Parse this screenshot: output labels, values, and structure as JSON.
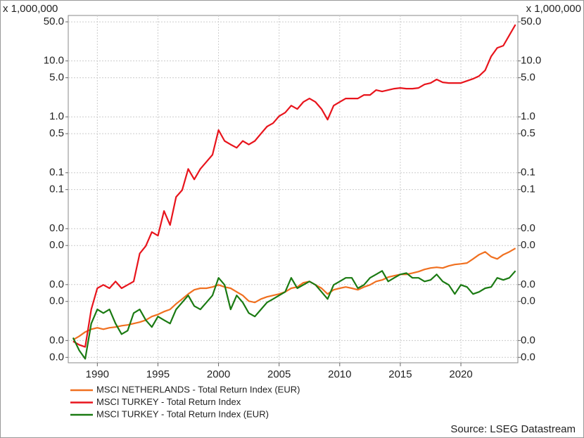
{
  "chart_data": {
    "type": "line",
    "y_unit_label": "x 1,000,000",
    "source": "Source: LSEG Datastream",
    "log_scale": true,
    "grid": true,
    "legend_position": "bottom-left",
    "xlim": [
      1987.6,
      2024.7
    ],
    "xticks": [
      1990,
      1995,
      2000,
      2005,
      2010,
      2015,
      2020
    ],
    "ylim": [
      4e-05,
      65
    ],
    "yticks": [
      {
        "value": 50,
        "label": "50.0"
      },
      {
        "value": 10,
        "label": "10.0"
      },
      {
        "value": 5,
        "label": "5.0"
      },
      {
        "value": 1,
        "label": "1.0"
      },
      {
        "value": 0.5,
        "label": "0.5"
      },
      {
        "value": 0.1,
        "label": "0.1"
      },
      {
        "value": 0.05,
        "label": "0.1"
      },
      {
        "value": 0.01,
        "label": "0.0"
      },
      {
        "value": 0.005,
        "label": "0.0"
      },
      {
        "value": 0.001,
        "label": "0.0"
      },
      {
        "value": 0.0005,
        "label": "0.0"
      },
      {
        "value": 0.0001,
        "label": "0.0"
      },
      {
        "value": 5e-05,
        "label": "0.0"
      }
    ],
    "x": [
      1988,
      1988.5,
      1989,
      1989.5,
      1990,
      1990.5,
      1991,
      1991.5,
      1992,
      1992.5,
      1993,
      1993.5,
      1994,
      1994.5,
      1995,
      1995.5,
      1996,
      1996.5,
      1997,
      1997.5,
      1998,
      1998.5,
      1999,
      1999.5,
      2000,
      2000.5,
      2001,
      2001.5,
      2002,
      2002.5,
      2003,
      2003.5,
      2004,
      2004.5,
      2005,
      2005.5,
      2006,
      2006.5,
      2007,
      2007.5,
      2008,
      2008.5,
      2009,
      2009.5,
      2010,
      2010.5,
      2011,
      2011.5,
      2012,
      2012.5,
      2013,
      2013.5,
      2014,
      2014.5,
      2015,
      2015.5,
      2016,
      2016.5,
      2017,
      2017.5,
      2018,
      2018.5,
      2019,
      2019.5,
      2020,
      2020.5,
      2021,
      2021.5,
      2022,
      2022.5,
      2023,
      2023.5,
      2024,
      2024.5
    ],
    "series": [
      {
        "name": "MSCI NETHERLANDS - Total Return Index (EUR)",
        "color": "#f07020",
        "values": [
          0.000103,
          0.000119,
          0.000142,
          0.000159,
          0.000169,
          0.000159,
          0.000169,
          0.000174,
          0.000184,
          0.00019,
          0.000201,
          0.000213,
          0.000232,
          0.000269,
          0.000292,
          0.000329,
          0.00036,
          0.000452,
          0.000553,
          0.000678,
          0.000807,
          0.00086,
          0.00086,
          0.000906,
          0.00099,
          0.000906,
          0.00086,
          0.00074,
          0.00064,
          0.000507,
          0.000479,
          0.000553,
          0.000604,
          0.00064,
          0.000678,
          0.00074,
          0.00086,
          0.000906,
          0.00108,
          0.00114,
          0.00099,
          0.00086,
          0.000678,
          0.000807,
          0.00086,
          0.000906,
          0.00086,
          0.000807,
          0.000906,
          0.00099,
          0.00114,
          0.00121,
          0.00136,
          0.00144,
          0.00152,
          0.00152,
          0.00161,
          0.00171,
          0.00187,
          0.00198,
          0.00204,
          0.00198,
          0.00216,
          0.00229,
          0.00235,
          0.00243,
          0.00288,
          0.00343,
          0.00385,
          0.00315,
          0.00288,
          0.00343,
          0.00385,
          0.00446
        ]
      },
      {
        "name": "MSCI TURKEY - Total Return Index",
        "color": "#e8141c",
        "values": [
          9.7e-05,
          8.4e-05,
          7.7e-05,
          0.00036,
          0.00086,
          0.00099,
          0.00086,
          0.00114,
          0.00086,
          0.00099,
          0.00114,
          0.0036,
          0.0049,
          0.0087,
          0.0075,
          0.0207,
          0.0116,
          0.037,
          0.049,
          0.117,
          0.076,
          0.117,
          0.157,
          0.21,
          0.58,
          0.37,
          0.32,
          0.28,
          0.37,
          0.32,
          0.37,
          0.5,
          0.67,
          0.77,
          1.03,
          1.19,
          1.59,
          1.38,
          1.84,
          2.13,
          1.84,
          1.38,
          0.89,
          1.59,
          1.84,
          2.13,
          2.13,
          2.13,
          2.46,
          2.46,
          3.01,
          2.84,
          3.01,
          3.19,
          3.29,
          3.19,
          3.19,
          3.29,
          3.8,
          4.03,
          4.66,
          4.14,
          4.03,
          4.03,
          4.03,
          4.39,
          4.79,
          5.37,
          6.78,
          12.1,
          17.1,
          18.7,
          28.8,
          44.6
        ]
      },
      {
        "name": "MSCI TURKEY - Total Return Index (EUR)",
        "color": "#1a7a12",
        "values": [
          0.000112,
          6.7e-05,
          4.7e-05,
          0.000201,
          0.00036,
          0.00031,
          0.00036,
          0.000201,
          0.00013,
          0.00015,
          0.00031,
          0.00036,
          0.000232,
          0.000174,
          0.000269,
          0.000232,
          0.000201,
          0.00036,
          0.000479,
          0.00064,
          0.000414,
          0.00036,
          0.000479,
          0.00064,
          0.00132,
          0.00099,
          0.00036,
          0.00064,
          0.000479,
          0.00031,
          0.000269,
          0.00036,
          0.000479,
          0.000553,
          0.00064,
          0.00074,
          0.00132,
          0.00086,
          0.00099,
          0.00114,
          0.00099,
          0.00074,
          0.000553,
          0.00099,
          0.00114,
          0.00132,
          0.00132,
          0.00086,
          0.00099,
          0.00132,
          0.00152,
          0.00176,
          0.00114,
          0.00132,
          0.00152,
          0.00161,
          0.00132,
          0.00132,
          0.00114,
          0.00121,
          0.00152,
          0.00114,
          0.00099,
          0.000678,
          0.00099,
          0.000906,
          0.000678,
          0.00074,
          0.00086,
          0.000906,
          0.00132,
          0.00121,
          0.00132,
          0.00176
        ]
      }
    ]
  }
}
